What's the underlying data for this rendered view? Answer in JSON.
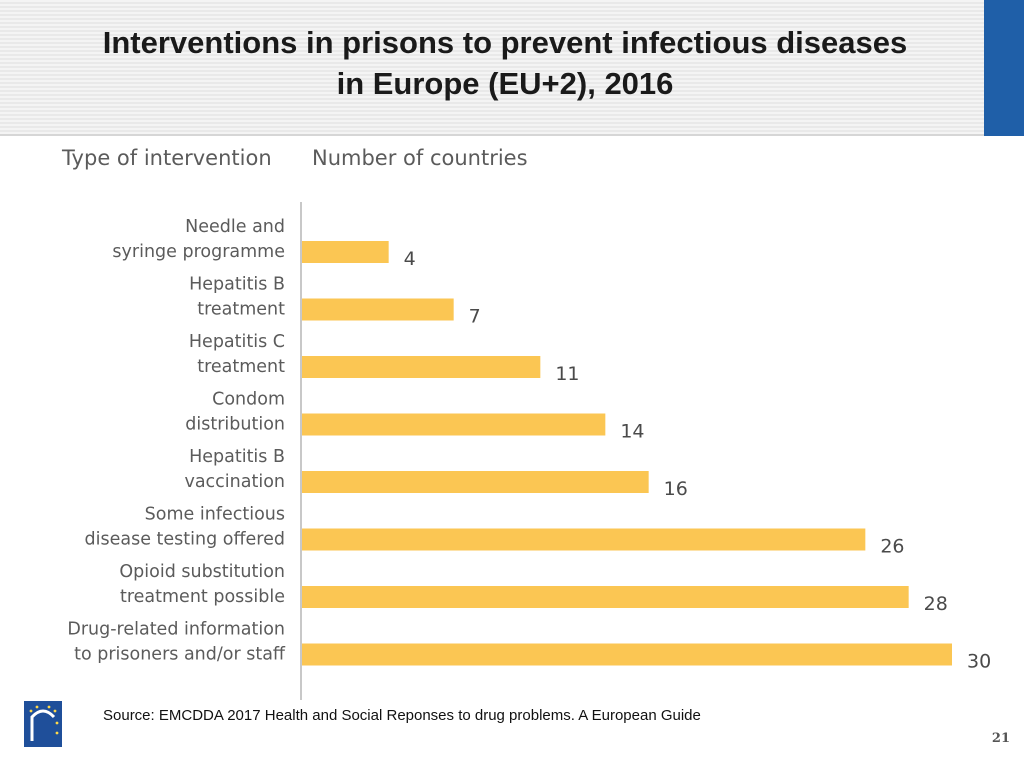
{
  "slide": {
    "title_line1": "Interventions in prisons to prevent infectious diseases",
    "title_line2": "in Europe (EU+2), 2016",
    "source": "Source: EMCDDA 2017 Health and Social Reponses to drug problems. A European Guide",
    "page_number": "21"
  },
  "colors": {
    "bar": "#fbc653",
    "accent": "#1f5fa8",
    "axis": "#c8c8c8"
  },
  "icons": {
    "logo": "emcdda-logo-icon"
  },
  "chart_data": {
    "type": "bar",
    "orientation": "horizontal",
    "category_axis_title": "Type of intervention",
    "value_axis_title": "Number of countries",
    "categories": [
      [
        "Needle and",
        "syringe programme"
      ],
      [
        "Hepatitis B",
        "treatment"
      ],
      [
        "Hepatitis C",
        "treatment"
      ],
      [
        "Condom",
        "distribution"
      ],
      [
        "Hepatitis B",
        "vaccination"
      ],
      [
        "Some infectious",
        "disease testing offered"
      ],
      [
        "Opioid substitution",
        "treatment possible"
      ],
      [
        "Drug-related information",
        "to prisoners and/or staff"
      ]
    ],
    "values": [
      4,
      7,
      11,
      14,
      16,
      26,
      28,
      30
    ],
    "xlim": [
      0,
      30
    ],
    "grid": false,
    "legend": "none"
  }
}
